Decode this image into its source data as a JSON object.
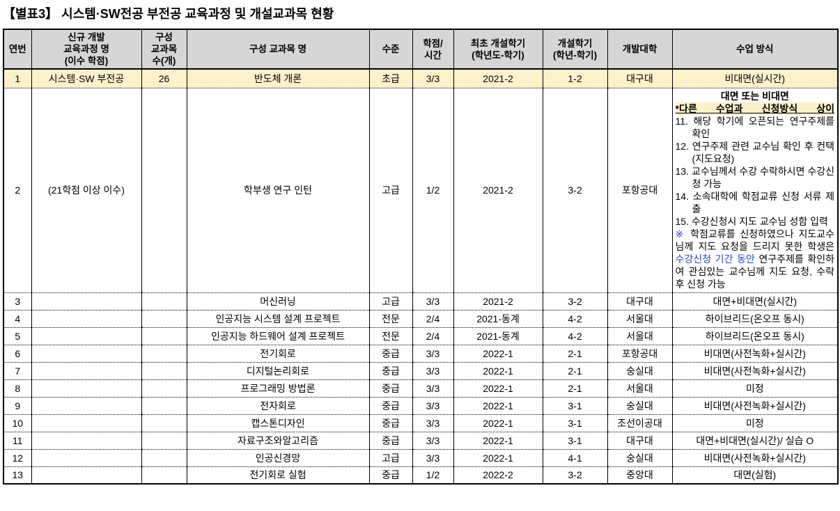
{
  "title": "【별표3】 시스템·SW전공 부전공 교육과정 및 개설교과목 현황",
  "colors": {
    "header_bg": "#d6d6d6",
    "accent_row_bg": "#fdf1cb",
    "highlight_bg": "#fdf1cb",
    "blue_text": "#3344cc",
    "border_color": "#000000"
  },
  "table": {
    "headers": [
      {
        "id": "no",
        "lines": [
          "연번"
        ]
      },
      {
        "id": "curriculum",
        "lines": [
          "신규 개발",
          "교육과정 명",
          "(이수 학점)"
        ]
      },
      {
        "id": "count",
        "lines": [
          "구성",
          "교과목",
          "수(개)"
        ]
      },
      {
        "id": "course",
        "lines": [
          "구성 교과목 명"
        ]
      },
      {
        "id": "level",
        "lines": [
          "수준"
        ]
      },
      {
        "id": "credits",
        "lines": [
          "학점/",
          "시간"
        ]
      },
      {
        "id": "first_sem",
        "lines": [
          "최초 개설학기",
          "(학년도-학기)"
        ]
      },
      {
        "id": "open_sem",
        "lines": [
          "개설학기",
          "(학년-학기)"
        ]
      },
      {
        "id": "univ",
        "lines": [
          "개발대학"
        ]
      },
      {
        "id": "method",
        "lines": [
          "수업 방식"
        ]
      }
    ],
    "rows": [
      {
        "no": "1",
        "curriculum": "시스템·SW 부전공",
        "count": "26",
        "course": "반도체 개론",
        "level": "초급",
        "credits": "3/3",
        "first_sem": "2021-2",
        "open_sem": "1-2",
        "univ": "대구대",
        "method": "비대면(실시간)",
        "accent": true
      },
      {
        "no": "2",
        "curriculum": "(21학점 이상 이수)",
        "count": "",
        "course": "학부생 연구 인턴",
        "level": "고급",
        "credits": "1/2",
        "first_sem": "2021-2",
        "open_sem": "3-2",
        "univ": "포항공대",
        "method_note": {
          "line1": "대면 또는 비대면",
          "line2": "*다른 수업과 신청방식 상이",
          "items": [
            {
              "num": "11.",
              "text": "해당 학기에 오픈되는 연구주제를 확인"
            },
            {
              "num": "12.",
              "text": "연구주제 관련 교수님 확인 후 컨택(지도요청)"
            },
            {
              "num": "13.",
              "text": "교수님께서 수강 수락하시면 수강신청 가능"
            },
            {
              "num": "14.",
              "text": "소속대학에 학점교류 신청 서류 제출"
            },
            {
              "num": "15.",
              "text": "수강신청시 지도 교수님 성함 입력"
            }
          ],
          "note": {
            "marker": "※",
            "pre": " 학점교류를 신청하였으나 지도교수님께 지도 요청을 드리지 못한 학생은 ",
            "blue": "수강신청 기간 동안",
            "post": " 연구주제를 확인하여 관심있는 교수님께 지도 요청, 수락 후 신청 가능"
          }
        }
      },
      {
        "no": "3",
        "curriculum": "",
        "count": "",
        "course": "머신러닝",
        "level": "고급",
        "credits": "3/3",
        "first_sem": "2021-2",
        "open_sem": "3-2",
        "univ": "대구대",
        "method": "대면+비대면(실시간)"
      },
      {
        "no": "4",
        "curriculum": "",
        "count": "",
        "course": "인공지능 시스템 설계 프로젝트",
        "level": "전문",
        "credits": "2/4",
        "first_sem": "2021-동계",
        "open_sem": "4-2",
        "univ": "서울대",
        "method": "하이브리드(온오프 동시)"
      },
      {
        "no": "5",
        "curriculum": "",
        "count": "",
        "course": "인공지능 하드웨어 설계 프로젝트",
        "level": "전문",
        "credits": "2/4",
        "first_sem": "2021-동계",
        "open_sem": "4-2",
        "univ": "서울대",
        "method": "하이브리드(온오프 동시)"
      },
      {
        "no": "6",
        "curriculum": "",
        "count": "",
        "course": "전기회로",
        "level": "중급",
        "credits": "3/3",
        "first_sem": "2022-1",
        "open_sem": "2-1",
        "univ": "포항공대",
        "method": "비대면(사전녹화+실시간)"
      },
      {
        "no": "7",
        "curriculum": "",
        "count": "",
        "course": "디지털논리회로",
        "level": "중급",
        "credits": "3/3",
        "first_sem": "2022-1",
        "open_sem": "2-1",
        "univ": "숭실대",
        "method": "비대면(사전녹화+실시간)"
      },
      {
        "no": "8",
        "curriculum": "",
        "count": "",
        "course": "프로그래밍 방법론",
        "level": "중급",
        "credits": "3/3",
        "first_sem": "2022-1",
        "open_sem": "2-1",
        "univ": "서울대",
        "method": "미정"
      },
      {
        "no": "9",
        "curriculum": "",
        "count": "",
        "course": "전자회로",
        "level": "중급",
        "credits": "3/3",
        "first_sem": "2022-1",
        "open_sem": "3-1",
        "univ": "숭실대",
        "method": "비대면(사전녹화+실시간)"
      },
      {
        "no": "10",
        "curriculum": "",
        "count": "",
        "course": "캡스톤디자인",
        "level": "중급",
        "credits": "3/3",
        "first_sem": "2022-1",
        "open_sem": "3-1",
        "univ": "조선이공대",
        "method": "미정"
      },
      {
        "no": "11",
        "curriculum": "",
        "count": "",
        "course": "자료구조와알고리즘",
        "level": "중급",
        "credits": "3/3",
        "first_sem": "2022-1",
        "open_sem": "3-1",
        "univ": "대구대",
        "method": "대면+비대면(실시간)/ 실습 O"
      },
      {
        "no": "12",
        "curriculum": "",
        "count": "",
        "course": "인공신경망",
        "level": "고급",
        "credits": "3/3",
        "first_sem": "2022-1",
        "open_sem": "4-1",
        "univ": "숭실대",
        "method": "비대면(사전녹화+실시간)"
      },
      {
        "no": "13",
        "curriculum": "",
        "count": "",
        "course": "전기회로 실험",
        "level": "중급",
        "credits": "1/2",
        "first_sem": "2022-2",
        "open_sem": "3-2",
        "univ": "중앙대",
        "method": "대면(실험)"
      }
    ]
  }
}
